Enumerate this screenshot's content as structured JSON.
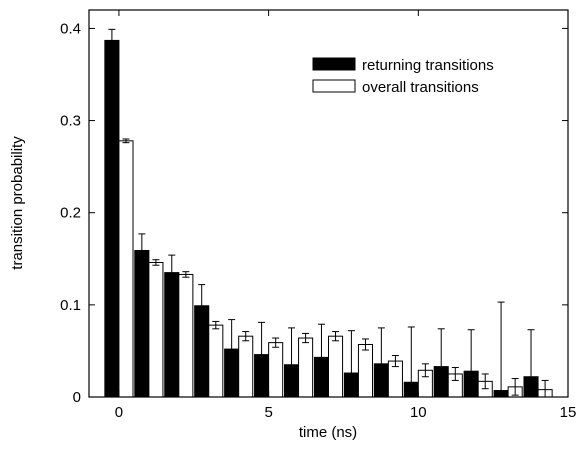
{
  "chart_data": {
    "type": "bar",
    "xlabel": "time (ns)",
    "ylabel": "transition probability",
    "xlim": [
      -1,
      15
    ],
    "ylim": [
      0,
      0.42
    ],
    "xticks": [
      0,
      5,
      10,
      15
    ],
    "yticks": [
      0,
      0.1,
      0.2,
      0.3,
      0.4
    ],
    "ytick_labels": [
      "0",
      "0.1",
      "0.2",
      "0.3",
      "0.4"
    ],
    "grid": false,
    "legend_position": "top-right",
    "series": [
      {
        "name": "returning transitions",
        "fill": "#000000",
        "x": [
          0,
          1,
          2,
          3,
          4,
          5,
          6,
          7,
          8,
          9,
          10,
          11,
          12,
          13,
          14
        ],
        "values": [
          0.387,
          0.159,
          0.135,
          0.099,
          0.052,
          0.046,
          0.035,
          0.043,
          0.026,
          0.036,
          0.016,
          0.033,
          0.028,
          0.007,
          0.022
        ],
        "error": [
          0.012,
          0.018,
          0.019,
          0.023,
          0.032,
          0.035,
          0.04,
          0.036,
          0.046,
          0.039,
          0.06,
          0.041,
          0.045,
          0.096,
          0.051
        ]
      },
      {
        "name": "overall transitions",
        "fill": "#ffffff",
        "x": [
          0,
          1,
          2,
          3,
          4,
          5,
          6,
          7,
          8,
          9,
          10,
          11,
          12,
          13,
          14
        ],
        "values": [
          0.278,
          0.146,
          0.133,
          0.078,
          0.066,
          0.059,
          0.064,
          0.066,
          0.057,
          0.039,
          0.029,
          0.025,
          0.017,
          0.011,
          0.008
        ],
        "error": [
          0.002,
          0.003,
          0.003,
          0.004,
          0.005,
          0.005,
          0.005,
          0.005,
          0.006,
          0.006,
          0.007,
          0.007,
          0.008,
          0.009,
          0.01
        ]
      }
    ]
  }
}
